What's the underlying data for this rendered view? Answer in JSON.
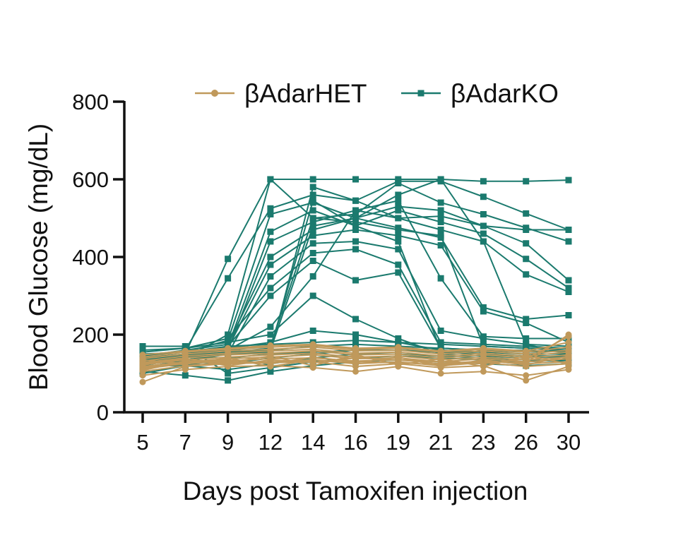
{
  "chart_data": {
    "type": "line",
    "xlabel": "Days post Tamoxifen injection",
    "ylabel": "Blood Glucose (mg/dL)",
    "categories": [
      "5",
      "7",
      "9",
      "12",
      "14",
      "16",
      "19",
      "21",
      "23",
      "26",
      "30"
    ],
    "ylim": [
      0,
      800
    ],
    "yticks": [
      0,
      200,
      400,
      600,
      800
    ],
    "grid": false,
    "legend_position": "top",
    "series": [
      {
        "name": "βAdarHET",
        "color": "#C0995B",
        "marker": "circle",
        "lines": [
          [
            78,
            118,
            125,
            128,
            130,
            118,
            125,
            115,
            120,
            82,
            118
          ],
          [
            95,
            110,
            118,
            120,
            115,
            105,
            118,
            100,
            105,
            95,
            110
          ],
          [
            105,
            120,
            128,
            130,
            135,
            125,
            130,
            120,
            128,
            118,
            125
          ],
          [
            112,
            125,
            132,
            138,
            140,
            132,
            135,
            125,
            132,
            125,
            130
          ],
          [
            118,
            130,
            138,
            142,
            148,
            138,
            140,
            130,
            138,
            130,
            138
          ],
          [
            122,
            135,
            142,
            148,
            152,
            142,
            145,
            135,
            142,
            135,
            142
          ],
          [
            128,
            140,
            148,
            152,
            158,
            148,
            150,
            140,
            148,
            140,
            148
          ],
          [
            132,
            145,
            152,
            158,
            162,
            152,
            155,
            145,
            152,
            145,
            155
          ],
          [
            138,
            150,
            158,
            162,
            168,
            158,
            160,
            150,
            158,
            150,
            160
          ],
          [
            142,
            155,
            162,
            168,
            172,
            162,
            165,
            155,
            162,
            155,
            168
          ],
          [
            148,
            158,
            165,
            172,
            175,
            165,
            168,
            158,
            165,
            158,
            180
          ],
          [
            115,
            128,
            135,
            125,
            142,
            130,
            128,
            122,
            130,
            128,
            200
          ],
          [
            125,
            138,
            120,
            135,
            128,
            140,
            135,
            130,
            125,
            138,
            195
          ],
          [
            135,
            125,
            140,
            118,
            135,
            128,
            142,
            118,
            135,
            122,
            145
          ],
          [
            108,
            132,
            128,
            145,
            120,
            148,
            122,
            138,
            118,
            145,
            125
          ]
        ]
      },
      {
        "name": "βAdarKO",
        "color": "#1B7A6E",
        "marker": "square",
        "lines": [
          [
            130,
            150,
            395,
            600,
            600,
            600,
            600,
            600,
            595,
            595,
            598
          ],
          [
            140,
            160,
            345,
            525,
            560,
            545,
            595,
            595,
            555,
            512,
            470
          ],
          [
            120,
            140,
            200,
            600,
            500,
            510,
            590,
            540,
            510,
            475,
            440
          ],
          [
            150,
            155,
            185,
            510,
            540,
            500,
            530,
            520,
            480,
            435,
            340
          ],
          [
            135,
            145,
            170,
            465,
            520,
            480,
            520,
            490,
            460,
            395,
            320
          ],
          [
            125,
            150,
            160,
            440,
            490,
            520,
            500,
            470,
            440,
            355,
            310
          ],
          [
            145,
            160,
            175,
            400,
            470,
            500,
            475,
            450,
            270,
            240,
            250
          ],
          [
            130,
            140,
            165,
            380,
            455,
            470,
            455,
            430,
            260,
            230,
            180
          ],
          [
            110,
            130,
            150,
            350,
            435,
            440,
            420,
            210,
            190,
            175,
            170
          ],
          [
            160,
            165,
            190,
            320,
            410,
            420,
            380,
            180,
            175,
            170,
            165
          ],
          [
            140,
            150,
            170,
            300,
            390,
            340,
            360,
            165,
            160,
            160,
            155
          ],
          [
            125,
            145,
            160,
            220,
            350,
            520,
            545,
            345,
            195,
            190,
            190
          ],
          [
            155,
            165,
            180,
            200,
            300,
            240,
            190,
            150,
            145,
            140,
            145
          ],
          [
            135,
            150,
            165,
            180,
            210,
            200,
            180,
            160,
            155,
            150,
            150
          ],
          [
            115,
            135,
            150,
            160,
            170,
            175,
            170,
            165,
            160,
            155,
            160
          ],
          [
            145,
            155,
            170,
            175,
            180,
            185,
            180,
            175,
            170,
            165,
            165
          ],
          [
            100,
            120,
            140,
            150,
            155,
            160,
            160,
            155,
            150,
            145,
            140
          ],
          [
            170,
            170,
            100,
            115,
            130,
            140,
            145,
            140,
            135,
            130,
            135
          ],
          [
            105,
            95,
            82,
            105,
            120,
            130,
            135,
            130,
            125,
            120,
            125
          ],
          [
            120,
            120,
            110,
            125,
            140,
            150,
            150,
            145,
            140,
            135,
            130
          ],
          [
            130,
            130,
            125,
            140,
            150,
            160,
            160,
            155,
            150,
            145,
            140
          ],
          [
            135,
            145,
            155,
            160,
            480,
            500,
            560,
            600,
            440,
            175,
            150
          ],
          [
            125,
            140,
            150,
            155,
            580,
            545,
            500,
            505,
            480,
            470,
            470
          ],
          [
            140,
            150,
            160,
            170,
            500,
            490,
            470,
            455,
            170,
            165,
            160
          ],
          [
            128,
            142,
            155,
            165,
            545,
            480,
            440,
            160,
            150,
            145,
            145
          ]
        ]
      }
    ]
  }
}
